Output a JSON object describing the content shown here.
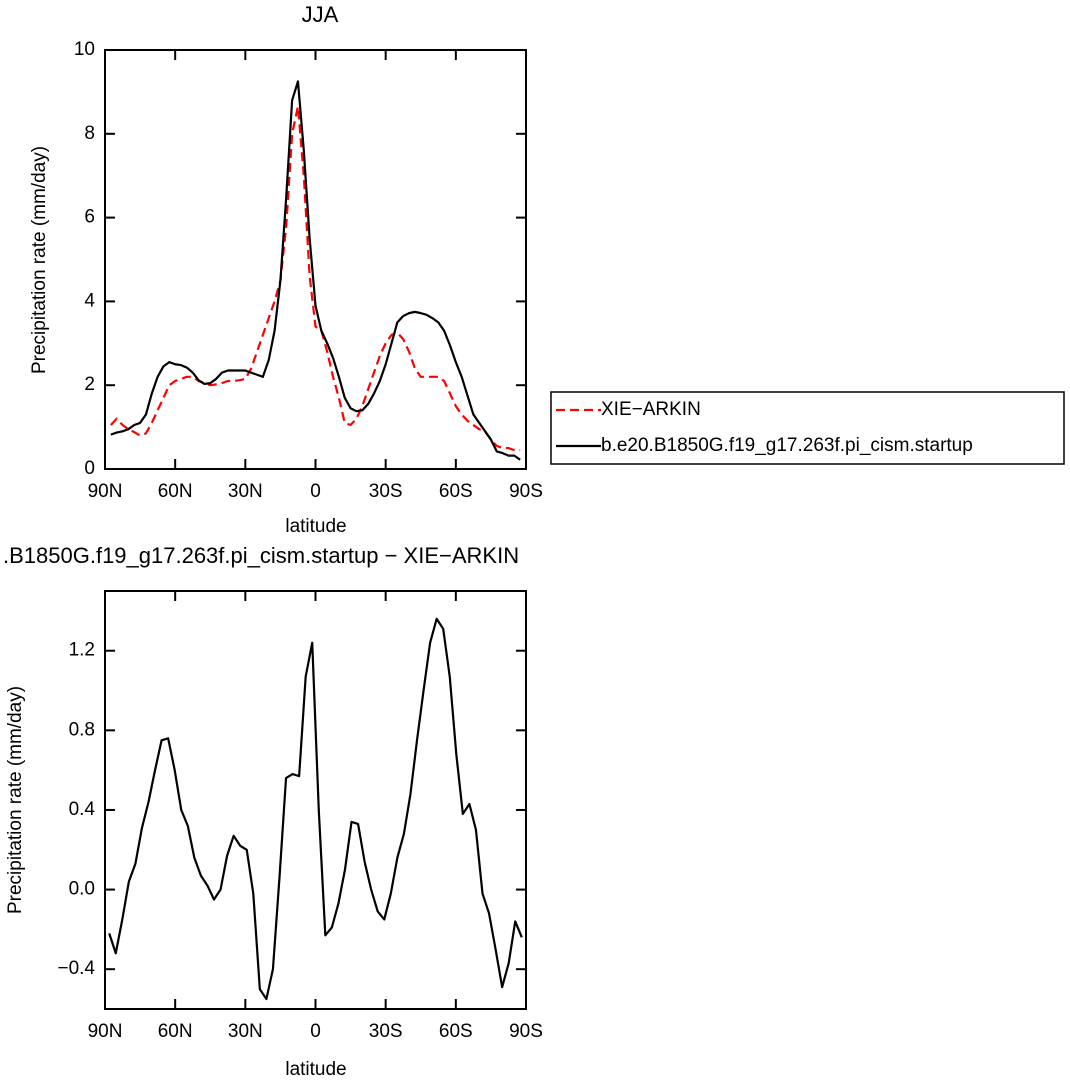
{
  "chart_data": [
    {
      "type": "line",
      "title": "JJA",
      "xlabel": "latitude",
      "ylabel": "Precipitation rate (mm/day)",
      "x": [
        87.5,
        85,
        82.5,
        80,
        77.5,
        75,
        72.5,
        70,
        67.5,
        65,
        62.5,
        60,
        57.5,
        55,
        52.5,
        50,
        47.5,
        45,
        42.5,
        40,
        37.5,
        35,
        32.5,
        30,
        27.5,
        25,
        22.5,
        20,
        17.5,
        15,
        12.5,
        10,
        7.5,
        5,
        2.5,
        0,
        -2.5,
        -5,
        -7.5,
        -10,
        -12.5,
        -15,
        -17.5,
        -20,
        -22.5,
        -25,
        -27.5,
        -30,
        -32.5,
        -35,
        -37.5,
        -40,
        -42.5,
        -45,
        -47.5,
        -50,
        -52.5,
        -55,
        -57.5,
        -60,
        -62.5,
        -65,
        -67.5,
        -70,
        -72.5,
        -75,
        -77.5,
        -80,
        -82.5,
        -85,
        -87.5
      ],
      "series": [
        {
          "name": "XIE−ARKIN",
          "color": "#ff0000",
          "linestyle": "dashed",
          "values": [
            1.05,
            1.2,
            1.05,
            0.95,
            0.88,
            0.8,
            0.85,
            1.1,
            1.4,
            1.7,
            2.0,
            2.1,
            2.15,
            2.2,
            2.2,
            2.1,
            2.05,
            2.0,
            2.02,
            2.05,
            2.1,
            2.1,
            2.12,
            2.15,
            2.4,
            2.8,
            3.2,
            3.6,
            4.0,
            4.5,
            5.8,
            8.0,
            8.65,
            7.0,
            4.6,
            3.4,
            3.3,
            2.8,
            2.2,
            1.7,
            1.1,
            1.05,
            1.2,
            1.5,
            1.9,
            2.3,
            2.7,
            3.0,
            3.2,
            3.25,
            3.1,
            2.8,
            2.4,
            2.2,
            2.2,
            2.2,
            2.2,
            2.1,
            1.8,
            1.5,
            1.3,
            1.15,
            1.05,
            0.95,
            0.9,
            0.7,
            0.55,
            0.5,
            0.5,
            0.45,
            0.45
          ]
        },
        {
          "name": "b.e20.B1850G.f19_g17.263f.pi_cism.startup",
          "color": "#000000",
          "linestyle": "solid",
          "values": [
            0.82,
            0.87,
            0.9,
            0.95,
            1.05,
            1.1,
            1.3,
            1.8,
            2.2,
            2.45,
            2.55,
            2.5,
            2.48,
            2.42,
            2.3,
            2.12,
            2.03,
            2.05,
            2.15,
            2.3,
            2.35,
            2.35,
            2.35,
            2.35,
            2.3,
            2.25,
            2.2,
            2.6,
            3.3,
            4.5,
            6.5,
            8.8,
            9.25,
            7.6,
            5.5,
            3.9,
            3.3,
            3.0,
            2.65,
            2.2,
            1.7,
            1.45,
            1.38,
            1.4,
            1.55,
            1.8,
            2.1,
            2.5,
            3.0,
            3.5,
            3.65,
            3.72,
            3.75,
            3.72,
            3.68,
            3.6,
            3.5,
            3.3,
            2.95,
            2.55,
            2.2,
            1.75,
            1.3,
            1.1,
            0.9,
            0.7,
            0.42,
            0.38,
            0.32,
            0.32,
            0.22
          ]
        }
      ],
      "xlim": [
        90,
        -90
      ],
      "xticks": [
        {
          "value": 90,
          "label": "90N"
        },
        {
          "value": 60,
          "label": "60N"
        },
        {
          "value": 30,
          "label": "30N"
        },
        0,
        {
          "value": -30,
          "label": "30S"
        },
        {
          "value": -60,
          "label": "60S"
        },
        {
          "value": -90,
          "label": "90S"
        }
      ],
      "ylim": [
        0,
        10
      ],
      "yticks": [
        0,
        2,
        4,
        6,
        8,
        10
      ],
      "legend": "right"
    },
    {
      "type": "line",
      "title": ".B1850G.f19_g17.263f.pi_cism.startup − XIE−ARKIN",
      "xlabel": "latitude",
      "ylabel": "Precipitation rate (mm/day)",
      "x": [
        88.2,
        85.4,
        82.6,
        79.8,
        77,
        74.2,
        71.4,
        68.6,
        65.8,
        63,
        60.2,
        57.4,
        54.6,
        51.8,
        49,
        46.2,
        43.4,
        40.6,
        37.8,
        35,
        32.2,
        29.4,
        26.6,
        23.8,
        21,
        18.2,
        15.4,
        12.6,
        9.8,
        7,
        4.2,
        1.4,
        -1.4,
        -4.2,
        -7,
        -9.8,
        -12.6,
        -15.4,
        -18.2,
        -21,
        -23.8,
        -26.6,
        -29.4,
        -32.2,
        -35,
        -37.8,
        -40.6,
        -43.4,
        -46.2,
        -49,
        -51.8,
        -54.6,
        -57.4,
        -60.2,
        -63,
        -65.8,
        -68.6,
        -71.4,
        -74.2,
        -77,
        -79.8,
        -82.6,
        -85.4,
        -88.2
      ],
      "color": "#000000",
      "values": [
        -0.22,
        -0.32,
        -0.15,
        0.04,
        0.13,
        0.31,
        0.44,
        0.6,
        0.75,
        0.76,
        0.6,
        0.4,
        0.32,
        0.16,
        0.07,
        0.02,
        -0.05,
        0.0,
        0.17,
        0.27,
        0.22,
        0.2,
        -0.02,
        -0.5,
        -0.55,
        -0.4,
        0.06,
        0.56,
        0.58,
        0.57,
        1.07,
        1.24,
        0.4,
        -0.23,
        -0.19,
        -0.07,
        0.1,
        0.34,
        0.33,
        0.14,
        0.0,
        -0.11,
        -0.15,
        -0.02,
        0.16,
        0.28,
        0.48,
        0.75,
        1.0,
        1.24,
        1.36,
        1.31,
        1.07,
        0.68,
        0.38,
        0.43,
        0.3,
        -0.02,
        -0.12,
        -0.3,
        -0.49,
        -0.37,
        -0.16,
        -0.24
      ],
      "xlim": [
        90,
        -90
      ],
      "xticks": [
        {
          "value": 90,
          "label": "90N"
        },
        {
          "value": 60,
          "label": "60N"
        },
        {
          "value": 30,
          "label": "30N"
        },
        0,
        {
          "value": -30,
          "label": "30S"
        },
        {
          "value": -60,
          "label": "60S"
        },
        {
          "value": -90,
          "label": "90S"
        }
      ],
      "ylim": [
        -0.6,
        1.5
      ],
      "yticks": [
        {
          "value": -0.4,
          "label": "−0.4"
        },
        {
          "value": 0,
          "label": "0.0"
        },
        0.4,
        0.8,
        1.2
      ]
    }
  ]
}
